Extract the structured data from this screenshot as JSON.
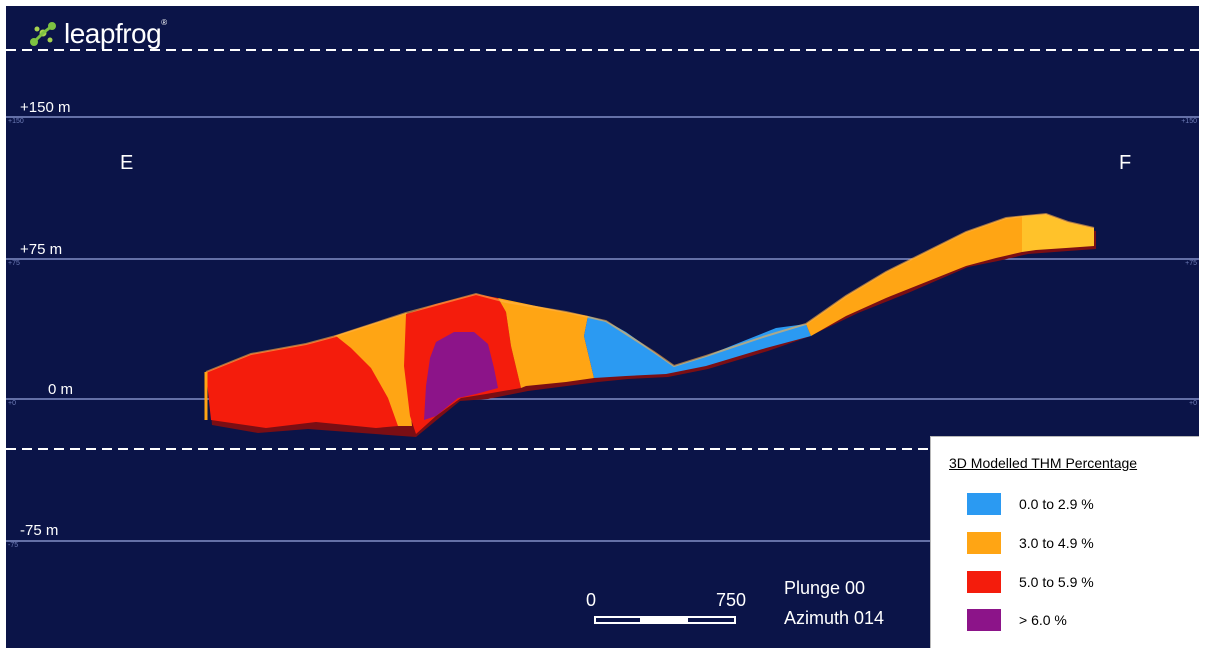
{
  "logo": {
    "text": "leapfrog",
    "mark": "®"
  },
  "elevations": [
    {
      "label": "+150 m",
      "tick": "+150"
    },
    {
      "label": "+75 m",
      "tick": "+75"
    },
    {
      "label": "0 m",
      "tick": "+0"
    },
    {
      "label": "-75 m",
      "tick": "-75"
    }
  ],
  "section_ends": {
    "left": "E",
    "right": "F"
  },
  "scale_bar": {
    "start": "0",
    "end": "750"
  },
  "orientation": {
    "plunge": "Plunge  00",
    "azimuth": "Azimuth 014"
  },
  "legend": {
    "title": "3D Modelled THM Percentage",
    "items": [
      {
        "label": "0.0 to 2.9 %",
        "color": "#2b9af2"
      },
      {
        "label": "3.0 to 4.9 %",
        "color": "#ffa514"
      },
      {
        "label": "5.0 to 5.9 %",
        "color": "#f41c0c"
      },
      {
        "label": "> 6.0 %",
        "color": "#8c1489"
      }
    ]
  },
  "colors": {
    "background": "#0b1448",
    "grid_line": "#9aa8e0",
    "dashed_line": "#ffffff",
    "shadow": "#7a0e14"
  }
}
